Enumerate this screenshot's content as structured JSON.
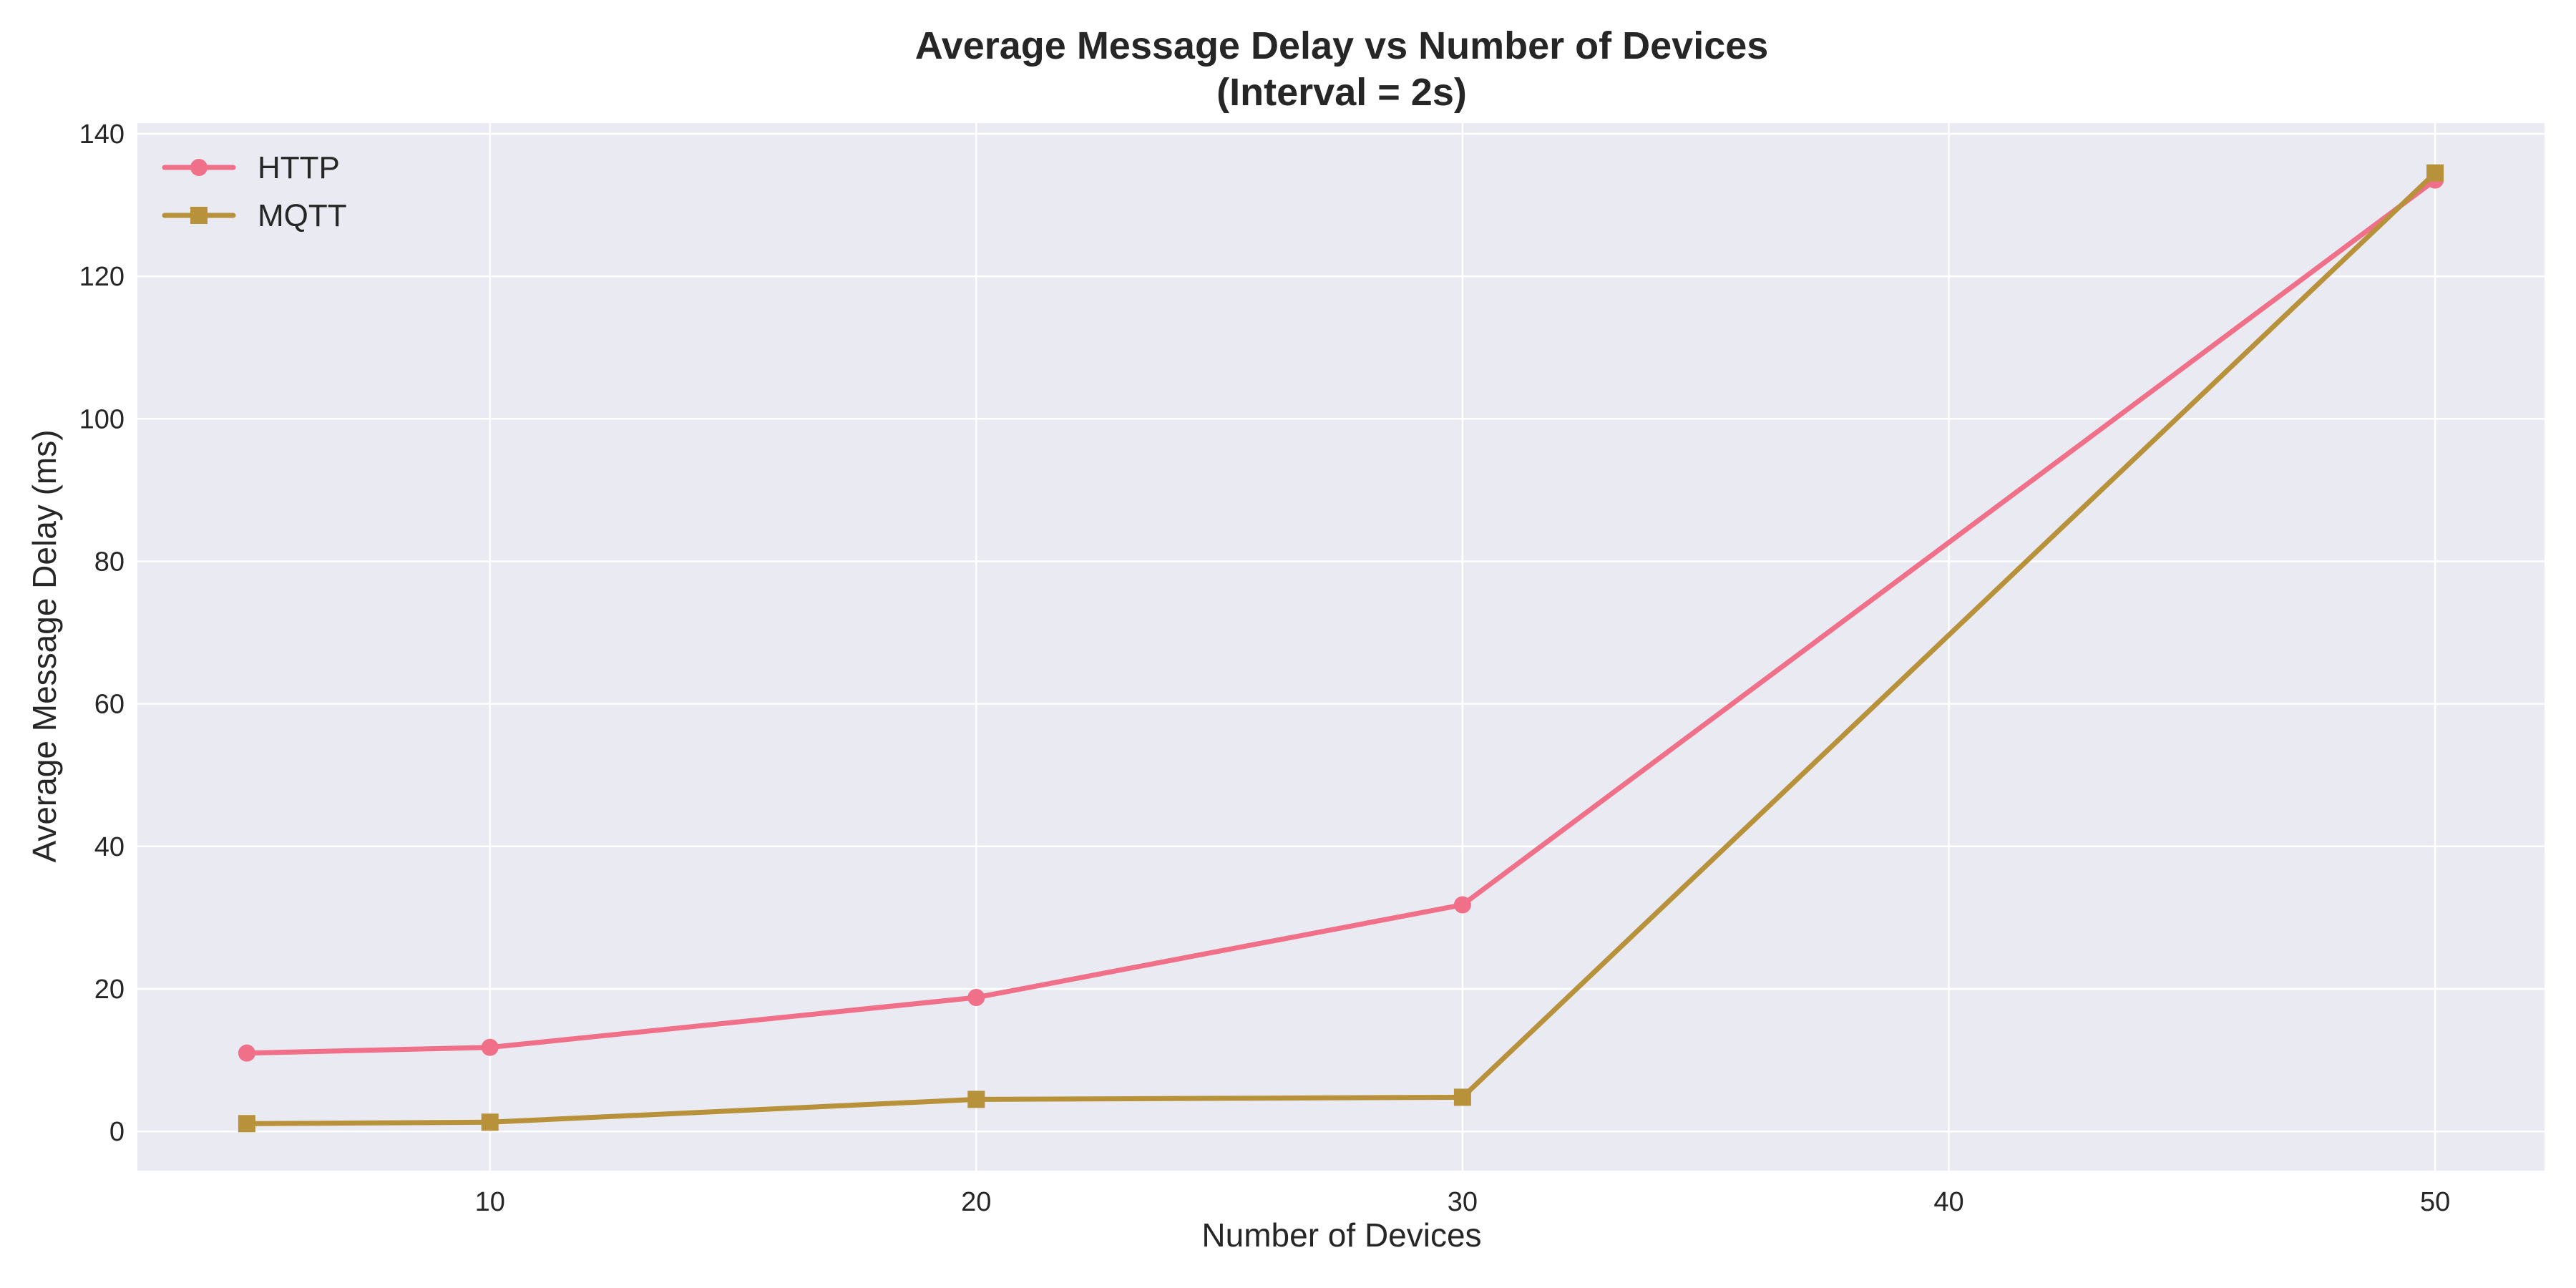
{
  "chart_data": {
    "type": "line",
    "title": "Average Message Delay vs Number of Devices",
    "subtitle": "(Interval = 2s)",
    "xlabel": "Number of Devices",
    "ylabel": "Average Message Delay (ms)",
    "xlim": [
      2.75,
      52.25
    ],
    "ylim": [
      -5.5,
      141.5
    ],
    "x_ticks": [
      10,
      20,
      30,
      40,
      50
    ],
    "y_ticks": [
      0,
      20,
      40,
      60,
      80,
      100,
      120,
      140
    ],
    "grid": true,
    "legend_position": "top-left",
    "colors": {
      "plot_background": "#eaeaf2",
      "grid": "#ffffff"
    },
    "x": [
      5,
      10,
      20,
      30,
      50
    ],
    "series": [
      {
        "name": "HTTP",
        "marker": "circle",
        "color": "#f0708a",
        "values": [
          11.0,
          11.8,
          18.8,
          31.8,
          133.5
        ]
      },
      {
        "name": "MQTT",
        "marker": "square",
        "color": "#b8923a",
        "values": [
          1.1,
          1.3,
          4.5,
          4.8,
          134.5
        ]
      }
    ]
  }
}
